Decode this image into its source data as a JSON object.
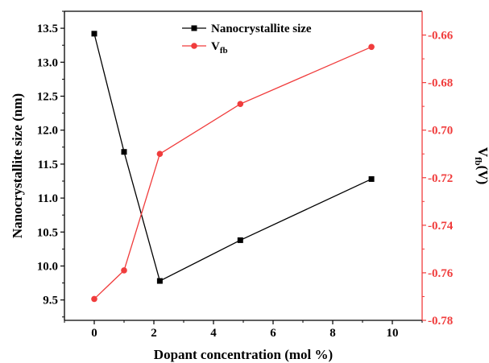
{
  "chart_data": {
    "type": "line",
    "xlabel": "Dopant concentration (mol %)",
    "ylabel_left": "Nanocrystallite size (nm)",
    "ylabel_right_main": "V",
    "ylabel_right_sub": "fb",
    "ylabel_right_tail": "(V)",
    "xlim": [
      -1,
      11
    ],
    "ylim_left": [
      9.2,
      13.75
    ],
    "ylim_right": [
      -0.78,
      -0.65
    ],
    "x_ticks": [
      0,
      2,
      4,
      6,
      8,
      10
    ],
    "x_tick_labels": [
      "0",
      "2",
      "4",
      "6",
      "8",
      "10"
    ],
    "y_left_ticks": [
      9.5,
      10.0,
      10.5,
      11.0,
      11.5,
      12.0,
      12.5,
      13.0,
      13.5
    ],
    "y_left_tick_labels": [
      "9.5",
      "10.0",
      "10.5",
      "11.0",
      "11.5",
      "12.0",
      "12.5",
      "13.0",
      "13.5"
    ],
    "y_right_ticks": [
      -0.78,
      -0.76,
      -0.74,
      -0.72,
      -0.7,
      -0.68,
      -0.66
    ],
    "y_right_tick_labels": [
      "-0.78",
      "-0.76",
      "-0.74",
      "-0.72",
      "-0.70",
      "-0.68",
      "-0.66"
    ],
    "legend_position": "top-center",
    "series": [
      {
        "name": "Nanocrystallite size",
        "axis": "left",
        "color": "#000000",
        "marker": "square",
        "x": [
          0,
          1,
          2.2,
          4.9,
          9.3
        ],
        "y": [
          13.42,
          11.68,
          9.78,
          10.38,
          11.28
        ]
      },
      {
        "name_main": "V",
        "name_sub": "fb",
        "axis": "right",
        "color": "#f03c3c",
        "marker": "circle",
        "x": [
          0,
          1,
          2.2,
          4.9,
          9.3
        ],
        "y": [
          -0.771,
          -0.759,
          -0.71,
          -0.689,
          -0.665
        ]
      }
    ]
  }
}
